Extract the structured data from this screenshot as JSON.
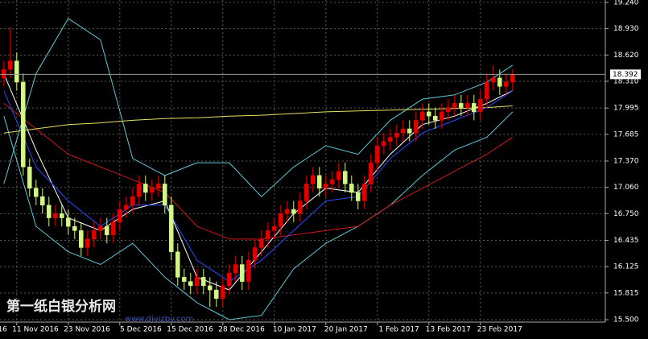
{
  "chart_data": {
    "type": "candlestick",
    "ylim": [
      15.5,
      19.24
    ],
    "yticks": [
      {
        "value": 19.24,
        "label": "19.240"
      },
      {
        "value": 18.93,
        "label": "18.930"
      },
      {
        "value": 18.62,
        "label": "18.620"
      },
      {
        "value": 18.31,
        "label": "18.310"
      },
      17.995,
      17.685,
      {
        "value": 17.37,
        "label": "17.370"
      },
      {
        "value": 17.06,
        "label": "17.060"
      },
      {
        "value": 16.75,
        "label": "16.750"
      },
      16.435,
      16.125,
      15.815,
      {
        "value": 15.5,
        "label": "15.500"
      }
    ],
    "xlim": [
      -0.6,
      93.4
    ],
    "xticks": [
      {
        "value": -6,
        "label": "16"
      },
      {
        "value": 2,
        "label": "11 Nov 2016"
      },
      {
        "value": 10,
        "label": "23 Nov 2016"
      },
      {
        "value": 18,
        "label": "5 Dec 2016"
      },
      {
        "value": 26,
        "label": "15 Dec 2016"
      },
      {
        "value": 34,
        "label": "28 Dec 2016"
      },
      {
        "value": 42,
        "label": "10 Jan 2017"
      },
      {
        "value": 50,
        "label": "20 Jan 2017"
      },
      {
        "value": 58,
        "label": "1 Feb 2017"
      },
      {
        "value": 66,
        "label": "13 Feb 2017"
      },
      {
        "value": 74,
        "label": "23 Feb 2017"
      }
    ],
    "grid": true,
    "bull_color": "#e00000",
    "bear_color": "#d4f58a",
    "open": [
      18.35,
      18.45,
      18.55,
      18.3,
      17.3,
      17.05,
      16.95,
      16.85,
      16.7,
      16.75,
      16.7,
      16.6,
      16.55,
      16.35,
      16.45,
      16.55,
      16.6,
      16.5,
      16.65,
      16.8,
      16.85,
      16.95,
      17.1,
      17.0,
      17.05,
      17.1,
      16.85,
      16.3,
      16.0,
      15.95,
      15.9,
      16.0,
      15.9,
      15.85,
      15.75,
      15.9,
      16.05,
      16.15,
      15.95,
      16.2,
      16.35,
      16.45,
      16.55,
      16.6,
      16.75,
      16.8,
      16.75,
      16.9,
      17.1,
      17.2,
      17.05,
      17.1,
      17.15,
      17.25,
      17.1,
      17.0,
      16.9,
      17.1,
      17.35,
      17.55,
      17.6,
      17.65,
      17.7,
      17.75,
      17.7,
      17.85,
      17.95,
      17.9,
      17.85,
      17.95,
      18.0,
      18.05,
      18.0,
      18.05,
      17.95,
      18.1,
      18.3,
      18.35,
      18.25,
      18.3
    ],
    "high": [
      18.55,
      18.95,
      18.65,
      18.4,
      17.4,
      17.15,
      17.05,
      16.95,
      16.85,
      16.85,
      16.8,
      16.7,
      16.65,
      16.55,
      16.65,
      16.7,
      16.7,
      16.75,
      16.9,
      16.95,
      17.05,
      17.2,
      17.2,
      17.15,
      17.2,
      17.2,
      16.95,
      16.4,
      16.1,
      16.05,
      16.1,
      16.1,
      16.0,
      15.95,
      16.0,
      16.15,
      16.25,
      16.25,
      16.3,
      16.45,
      16.55,
      16.65,
      16.7,
      16.85,
      16.9,
      16.9,
      17.0,
      17.2,
      17.3,
      17.3,
      17.2,
      17.25,
      17.35,
      17.35,
      17.2,
      17.1,
      17.2,
      17.45,
      17.65,
      17.7,
      17.75,
      17.8,
      17.85,
      17.85,
      17.95,
      18.05,
      18.05,
      18.0,
      18.05,
      18.1,
      18.15,
      18.15,
      18.15,
      18.15,
      18.2,
      18.4,
      18.5,
      18.45,
      18.4,
      18.45
    ],
    "low": [
      18.25,
      18.35,
      18.2,
      17.2,
      16.95,
      16.85,
      16.75,
      16.6,
      16.6,
      16.6,
      16.5,
      16.45,
      16.25,
      16.25,
      16.35,
      16.45,
      16.4,
      16.4,
      16.55,
      16.7,
      16.75,
      16.85,
      16.9,
      16.9,
      16.95,
      16.75,
      16.2,
      15.9,
      15.85,
      15.8,
      15.8,
      15.8,
      15.65,
      15.65,
      15.65,
      15.8,
      15.95,
      15.85,
      15.85,
      16.1,
      16.25,
      16.35,
      16.45,
      16.5,
      16.65,
      16.65,
      16.65,
      16.8,
      17.0,
      16.95,
      16.95,
      17.0,
      17.05,
      17.0,
      16.9,
      16.8,
      16.8,
      17.0,
      17.25,
      17.45,
      17.5,
      17.55,
      17.6,
      17.6,
      17.6,
      17.75,
      17.8,
      17.75,
      17.75,
      17.85,
      17.9,
      17.9,
      17.9,
      17.85,
      17.85,
      18.0,
      18.2,
      18.15,
      18.15,
      18.2
    ],
    "close": [
      18.45,
      18.55,
      18.3,
      17.3,
      17.05,
      16.95,
      16.85,
      16.7,
      16.75,
      16.7,
      16.6,
      16.55,
      16.35,
      16.45,
      16.55,
      16.6,
      16.5,
      16.65,
      16.8,
      16.85,
      16.95,
      17.1,
      17.0,
      17.05,
      17.1,
      16.85,
      16.3,
      16.0,
      15.95,
      15.9,
      16.0,
      15.9,
      15.85,
      15.75,
      15.9,
      16.05,
      16.15,
      15.95,
      16.2,
      16.35,
      16.45,
      16.55,
      16.6,
      16.75,
      16.8,
      16.75,
      16.9,
      17.1,
      17.2,
      17.05,
      17.1,
      17.15,
      17.25,
      17.1,
      17.0,
      16.9,
      17.1,
      17.35,
      17.55,
      17.6,
      17.65,
      17.7,
      17.75,
      17.7,
      17.85,
      17.95,
      17.9,
      17.85,
      17.95,
      18.0,
      18.05,
      18.0,
      18.05,
      17.95,
      18.1,
      18.3,
      18.35,
      18.25,
      18.3,
      18.392
    ],
    "indicator_x": [
      0,
      5,
      10,
      15,
      20,
      25,
      30,
      35,
      40,
      45,
      50,
      55,
      60,
      65,
      70,
      75,
      79
    ],
    "indicators": [
      {
        "color": "#5fc8d8",
        "values": [
          17.1,
          18.4,
          19.05,
          18.8,
          17.4,
          17.2,
          17.35,
          17.35,
          16.95,
          17.3,
          17.55,
          17.45,
          17.85,
          18.1,
          18.15,
          18.3,
          18.5
        ]
      },
      {
        "color": "#5fc8d8",
        "values": [
          17.9,
          16.6,
          16.3,
          16.15,
          16.4,
          16.0,
          15.7,
          15.5,
          15.55,
          16.1,
          16.4,
          16.6,
          16.85,
          17.2,
          17.5,
          17.65,
          17.95
        ]
      },
      {
        "color": "#ffffff",
        "values": [
          18.4,
          17.5,
          16.7,
          16.55,
          16.8,
          16.9,
          16.0,
          15.85,
          16.3,
          16.75,
          17.05,
          17.0,
          17.45,
          17.8,
          17.9,
          18.05,
          18.2
        ]
      },
      {
        "color": "#d01818",
        "values": [
          18.05,
          17.75,
          17.45,
          17.3,
          17.15,
          17.0,
          16.6,
          16.45,
          16.45,
          16.5,
          16.55,
          16.6,
          16.85,
          17.05,
          17.25,
          17.45,
          17.65
        ]
      },
      {
        "color": "#e8e060",
        "values": [
          17.7,
          17.75,
          17.8,
          17.82,
          17.85,
          17.87,
          17.88,
          17.9,
          17.91,
          17.93,
          17.95,
          17.96,
          17.97,
          17.98,
          17.99,
          18.0,
          18.02
        ]
      },
      {
        "color": "#2a4cff",
        "values": [
          18.2,
          17.3,
          16.9,
          16.6,
          16.85,
          16.85,
          16.2,
          15.95,
          16.2,
          16.55,
          16.9,
          16.95,
          17.4,
          17.7,
          17.85,
          18.0,
          18.2
        ]
      }
    ],
    "last_price": 18.392,
    "watermark": "第一纸白银分析网",
    "watermark_url": "www.diyizby.com"
  }
}
